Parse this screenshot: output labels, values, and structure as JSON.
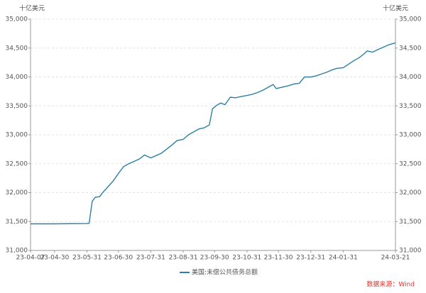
{
  "chart_data": {
    "type": "line",
    "unit_label": "十亿美元",
    "source": "数据来源：Wind",
    "x": [
      "23-04-07",
      "23-04-30",
      "23-05-31",
      "23-06-02",
      "23-06-05",
      "23-06-08",
      "23-06-12",
      "23-06-15",
      "23-06-20",
      "23-06-25",
      "23-06-30",
      "23-07-05",
      "23-07-10",
      "23-07-15",
      "23-07-20",
      "23-07-25",
      "23-07-31",
      "23-08-05",
      "23-08-10",
      "23-08-15",
      "23-08-20",
      "23-08-25",
      "23-08-31",
      "23-09-05",
      "23-09-10",
      "23-09-15",
      "23-09-20",
      "23-09-25",
      "23-09-28",
      "23-10-02",
      "23-10-06",
      "23-10-10",
      "23-10-15",
      "23-10-20",
      "23-10-25",
      "23-10-31",
      "23-11-05",
      "23-11-10",
      "23-11-15",
      "23-11-20",
      "23-11-25",
      "23-11-28",
      "23-12-05",
      "23-12-10",
      "23-12-15",
      "23-12-20",
      "23-12-25",
      "23-12-31",
      "24-01-05",
      "24-01-10",
      "24-01-15",
      "24-01-20",
      "24-01-25",
      "24-01-31",
      "24-02-05",
      "24-02-10",
      "24-02-15",
      "24-02-20",
      "24-02-23",
      "24-02-28",
      "24-03-05",
      "24-03-10",
      "24-03-15",
      "24-03-21"
    ],
    "series": [
      {
        "name": "美国:未偿公共债务总额",
        "color": "#2c7fa6",
        "values": [
          31460,
          31460,
          31465,
          31470,
          31850,
          31920,
          31930,
          32000,
          32100,
          32200,
          32330,
          32450,
          32500,
          32540,
          32580,
          32650,
          32600,
          32640,
          32680,
          32750,
          32820,
          32900,
          32920,
          33000,
          33050,
          33100,
          33120,
          33170,
          33450,
          33510,
          33550,
          33520,
          33650,
          33640,
          33660,
          33680,
          33700,
          33730,
          33770,
          33820,
          33870,
          33800,
          33830,
          33850,
          33880,
          33890,
          34000,
          34000,
          34020,
          34050,
          34080,
          34120,
          34150,
          34160,
          34220,
          34280,
          34330,
          34400,
          34450,
          34430,
          34480,
          34520,
          34560,
          34590
        ]
      }
    ],
    "xlim": [
      "23-04-07",
      "24-03-21"
    ],
    "xticks": [
      "23-04-07",
      "23-04-30",
      "23-05-31",
      "23-06-30",
      "23-07-31",
      "23-08-31",
      "23-09-30",
      "23-10-31",
      "23-11-30",
      "23-12-31",
      "24-01-31",
      "24-03-21"
    ],
    "ylim": [
      31000,
      35000
    ],
    "yticks": [
      {
        "value": 31000,
        "label": "31,000"
      },
      {
        "value": 31500,
        "label": "31,500"
      },
      {
        "value": 32000,
        "label": "32,000"
      },
      {
        "value": 32500,
        "label": "32,500"
      },
      {
        "value": 33000,
        "label": "33,000"
      },
      {
        "value": 33500,
        "label": "33,500"
      },
      {
        "value": 34000,
        "label": "34,000"
      },
      {
        "value": 34500,
        "label": "34,500"
      },
      {
        "value": 35000,
        "label": "35,000"
      }
    ],
    "grid": true,
    "legend": "bottom"
  }
}
